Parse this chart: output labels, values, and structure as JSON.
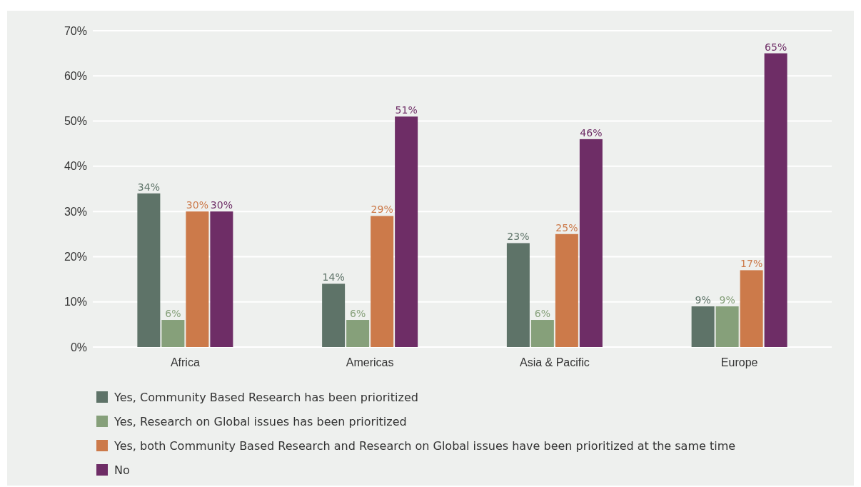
{
  "chart_data": {
    "type": "bar",
    "categories": [
      "Africa",
      "Americas",
      "Asia & Pacific",
      "Europe"
    ],
    "series": [
      {
        "name": "Yes, Community Based Research has been prioritized",
        "color": "#5e7368",
        "values": [
          34,
          14,
          23,
          9
        ],
        "value_labels": [
          "34%",
          "14%",
          "23%",
          "9%"
        ]
      },
      {
        "name": "Yes, Research on Global issues has been prioritized",
        "color": "#86a07a",
        "values": [
          6,
          6,
          6,
          9
        ],
        "value_labels": [
          "6%",
          "6%",
          "6%",
          "9%"
        ]
      },
      {
        "name": "Yes, both Community Based Research and Research on Global issues have been prioritized at the same time",
        "color": "#cc7a4a",
        "values": [
          30,
          29,
          25,
          17
        ],
        "value_labels": [
          "30%",
          "29%",
          "25%",
          "17%"
        ]
      },
      {
        "name": "No",
        "color": "#6e2d66",
        "values": [
          30,
          51,
          46,
          65
        ],
        "value_labels": [
          "30%",
          "51%",
          "46%",
          "65%"
        ]
      }
    ],
    "ylim": [
      0,
      70
    ],
    "yticks": [
      {
        "value": 0,
        "label": "0%"
      },
      {
        "value": 10,
        "label": "10%"
      },
      {
        "value": 20,
        "label": "20%"
      },
      {
        "value": 30,
        "label": "30%"
      },
      {
        "value": 40,
        "label": "40%"
      },
      {
        "value": 50,
        "label": "50%"
      },
      {
        "value": 60,
        "label": "60%"
      },
      {
        "value": 70,
        "label": "70%"
      }
    ],
    "grid": "y",
    "legend": "bottom"
  }
}
